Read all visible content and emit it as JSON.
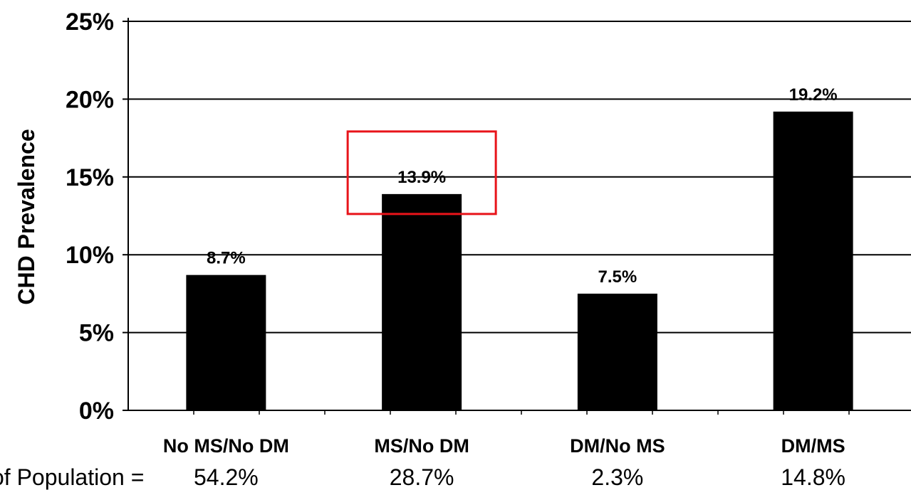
{
  "chart_data": {
    "type": "bar",
    "categories": [
      "No MS/No DM",
      "MS/No DM",
      "DM/No MS",
      "DM/MS"
    ],
    "values": [
      8.7,
      13.9,
      7.5,
      19.2
    ],
    "value_labels": [
      "8.7%",
      "13.9%",
      "7.5%",
      "19.2%"
    ],
    "ylabel": "CHD Prevalence",
    "xlabel": "",
    "title": "",
    "ylim": [
      0,
      25
    ],
    "yticks": [
      0,
      5,
      10,
      15,
      20,
      25
    ],
    "ytick_labels": [
      "0%",
      "5%",
      "10%",
      "15%",
      "20%",
      "25%"
    ],
    "grid": true,
    "bar_color": "#000000",
    "highlight_index": 1,
    "highlight_color": "#e8141a",
    "population_label": "of Population =",
    "population_values": [
      "54.2%",
      "28.7%",
      "2.3%",
      "14.8%"
    ]
  }
}
